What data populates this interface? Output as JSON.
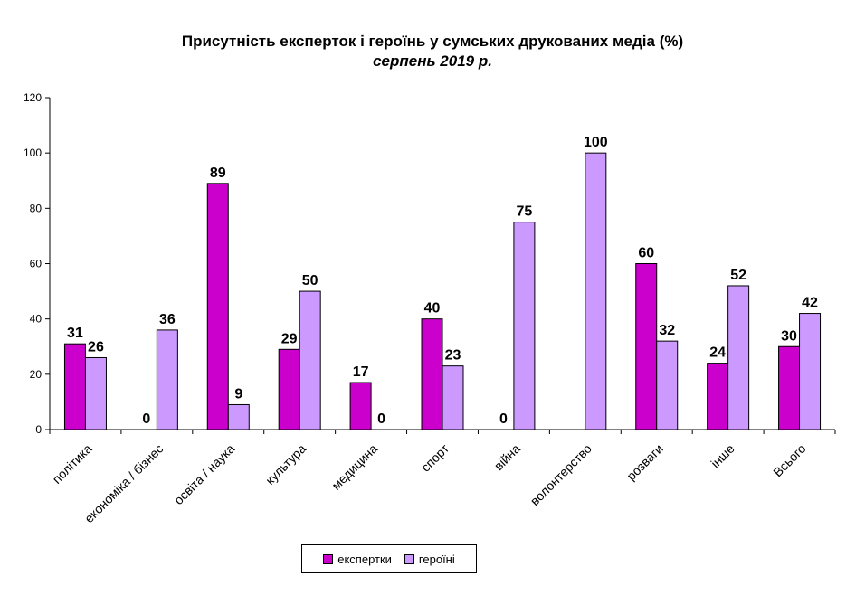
{
  "title": "Присутність експерток і героїнь у сумських друкованих медіа (%)",
  "subtitle": "серпень 2019 р.",
  "colors": {
    "series1": "#cc00cc",
    "series2": "#cc99ff"
  },
  "chart_data": {
    "type": "bar",
    "title": "Присутність експерток і героїнь у сумських друкованих медіа (%)",
    "subtitle": "серпень 2019 р.",
    "categories": [
      "політика",
      "економіка / бізнес",
      "освіта / наука",
      "культура",
      "медицина",
      "спорт",
      "війна",
      "волонтерство",
      "розваги",
      "інше",
      "Всього"
    ],
    "series": [
      {
        "name": "експертки",
        "values": [
          31,
          0,
          89,
          29,
          17,
          40,
          0,
          null,
          60,
          24,
          30
        ]
      },
      {
        "name": "героїні",
        "values": [
          26,
          36,
          9,
          50,
          0,
          23,
          75,
          100,
          32,
          52,
          42
        ]
      }
    ],
    "ylim": [
      0,
      120
    ],
    "yticks": [
      0,
      20,
      40,
      60,
      80,
      100,
      120
    ],
    "grid": false,
    "legend": "bottom"
  }
}
